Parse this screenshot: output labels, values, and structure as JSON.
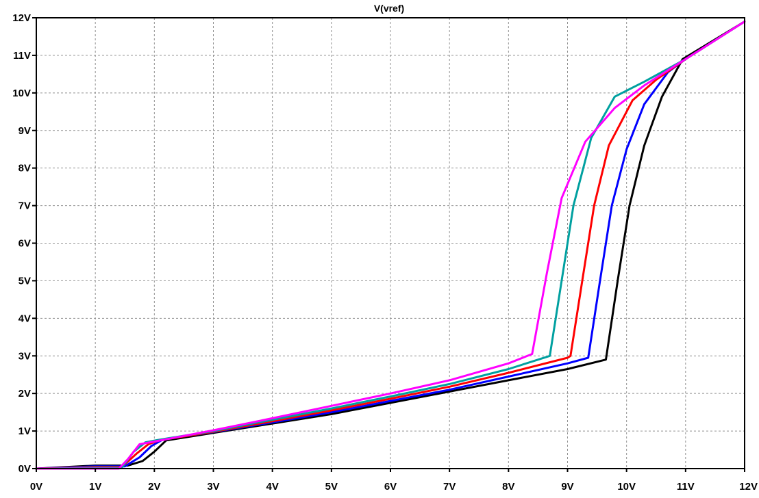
{
  "chart_data": {
    "type": "line",
    "title": "V(vref)",
    "xlabel": "",
    "ylabel": "",
    "xlim": [
      0,
      12
    ],
    "ylim": [
      0,
      12
    ],
    "grid": true,
    "x_ticks": [
      "0V",
      "1V",
      "2V",
      "3V",
      "4V",
      "5V",
      "6V",
      "7V",
      "8V",
      "9V",
      "10V",
      "11V",
      "12V"
    ],
    "y_ticks": [
      "0V",
      "1V",
      "2V",
      "3V",
      "4V",
      "5V",
      "6V",
      "7V",
      "8V",
      "9V",
      "10V",
      "11V",
      "12V"
    ],
    "series": [
      {
        "color": "#000000",
        "points": [
          [
            0,
            0
          ],
          [
            1,
            0.08
          ],
          [
            1.55,
            0.08
          ],
          [
            1.8,
            0.2
          ],
          [
            2.0,
            0.45
          ],
          [
            2.2,
            0.75
          ],
          [
            3,
            0.95
          ],
          [
            4,
            1.2
          ],
          [
            5,
            1.45
          ],
          [
            6,
            1.75
          ],
          [
            7,
            2.05
          ],
          [
            8,
            2.35
          ],
          [
            9,
            2.65
          ],
          [
            9.65,
            2.9
          ],
          [
            9.85,
            5
          ],
          [
            10.05,
            7
          ],
          [
            10.3,
            8.6
          ],
          [
            10.6,
            9.9
          ],
          [
            10.95,
            10.9
          ],
          [
            12,
            11.9
          ]
        ]
      },
      {
        "color": "#0000ff",
        "points": [
          [
            0,
            0
          ],
          [
            1,
            0.06
          ],
          [
            1.5,
            0.06
          ],
          [
            1.75,
            0.3
          ],
          [
            1.95,
            0.6
          ],
          [
            2.15,
            0.78
          ],
          [
            3,
            0.97
          ],
          [
            4,
            1.23
          ],
          [
            5,
            1.5
          ],
          [
            6,
            1.8
          ],
          [
            7,
            2.1
          ],
          [
            8,
            2.45
          ],
          [
            9,
            2.8
          ],
          [
            9.35,
            2.95
          ],
          [
            9.55,
            5
          ],
          [
            9.75,
            7
          ],
          [
            10.0,
            8.5
          ],
          [
            10.3,
            9.7
          ],
          [
            10.7,
            10.55
          ],
          [
            11,
            10.9
          ],
          [
            12,
            11.9
          ]
        ]
      },
      {
        "color": "#ff0000",
        "points": [
          [
            0,
            0
          ],
          [
            1,
            0.04
          ],
          [
            1.45,
            0.04
          ],
          [
            1.7,
            0.4
          ],
          [
            1.9,
            0.65
          ],
          [
            2.1,
            0.76
          ],
          [
            3,
            0.98
          ],
          [
            4,
            1.26
          ],
          [
            5,
            1.55
          ],
          [
            6,
            1.86
          ],
          [
            7,
            2.18
          ],
          [
            8,
            2.55
          ],
          [
            9,
            2.95
          ],
          [
            9.05,
            3.0
          ],
          [
            9.25,
            5
          ],
          [
            9.45,
            7
          ],
          [
            9.7,
            8.6
          ],
          [
            10.1,
            9.8
          ],
          [
            10.5,
            10.35
          ],
          [
            11,
            10.9
          ],
          [
            12,
            11.9
          ]
        ]
      },
      {
        "color": "#00a0a0",
        "points": [
          [
            0,
            0
          ],
          [
            1,
            0.02
          ],
          [
            1.45,
            0.02
          ],
          [
            1.65,
            0.45
          ],
          [
            1.85,
            0.7
          ],
          [
            2.05,
            0.76
          ],
          [
            3,
            1.0
          ],
          [
            4,
            1.3
          ],
          [
            5,
            1.6
          ],
          [
            6,
            1.92
          ],
          [
            7,
            2.25
          ],
          [
            8,
            2.65
          ],
          [
            8.7,
            3.0
          ],
          [
            8.9,
            5
          ],
          [
            9.1,
            7
          ],
          [
            9.4,
            8.8
          ],
          [
            9.8,
            9.9
          ],
          [
            10.3,
            10.3
          ],
          [
            11,
            10.9
          ],
          [
            12,
            11.9
          ]
        ]
      },
      {
        "color": "#ff00ff",
        "points": [
          [
            0,
            0
          ],
          [
            1,
            0
          ],
          [
            1.4,
            0
          ],
          [
            1.55,
            0.25
          ],
          [
            1.75,
            0.65
          ],
          [
            2,
            0.72
          ],
          [
            3,
            1.02
          ],
          [
            4,
            1.34
          ],
          [
            5,
            1.67
          ],
          [
            6,
            2.0
          ],
          [
            7,
            2.35
          ],
          [
            8,
            2.8
          ],
          [
            8.4,
            3.05
          ],
          [
            8.65,
            5.2
          ],
          [
            8.9,
            7.2
          ],
          [
            9.3,
            8.7
          ],
          [
            9.8,
            9.6
          ],
          [
            10.3,
            10.2
          ],
          [
            11,
            10.9
          ],
          [
            12,
            11.9
          ]
        ]
      }
    ]
  }
}
